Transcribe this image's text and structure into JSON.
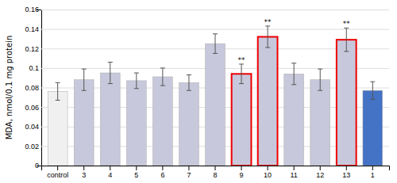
{
  "chart_data": {
    "type": "bar",
    "categories": [
      "control",
      "3",
      "4",
      "5",
      "6",
      "7",
      "8",
      "9",
      "10",
      "11",
      "12",
      "13",
      "1"
    ],
    "values": [
      0.076,
      0.088,
      0.095,
      0.087,
      0.091,
      0.085,
      0.125,
      0.094,
      0.132,
      0.094,
      0.088,
      0.129,
      0.077
    ],
    "errors": [
      0.009,
      0.011,
      0.011,
      0.008,
      0.009,
      0.008,
      0.01,
      0.01,
      0.011,
      0.011,
      0.011,
      0.012,
      0.009
    ],
    "colors": [
      "#f0f0f0",
      "#c8c8dc",
      "#c8c8dc",
      "#c8c8dc",
      "#c8c8dc",
      "#c8c8dc",
      "#c8c8dc",
      "#c8c8dc",
      "#c8c8dc",
      "#c8c8dc",
      "#c8c8dc",
      "#c8c8dc",
      "#4472c4"
    ],
    "annotations": [
      {
        "text": "**",
        "category": "9"
      },
      {
        "text": "**",
        "category": "10"
      },
      {
        "text": "**",
        "category": "13"
      }
    ],
    "ylabel": "MDA, nmol/0.1 mg protein",
    "ylim": [
      0,
      0.16
    ],
    "yticks": [
      0,
      0.02,
      0.04,
      0.06,
      0.08,
      0.1,
      0.12,
      0.14,
      0.16
    ],
    "grid": true
  }
}
